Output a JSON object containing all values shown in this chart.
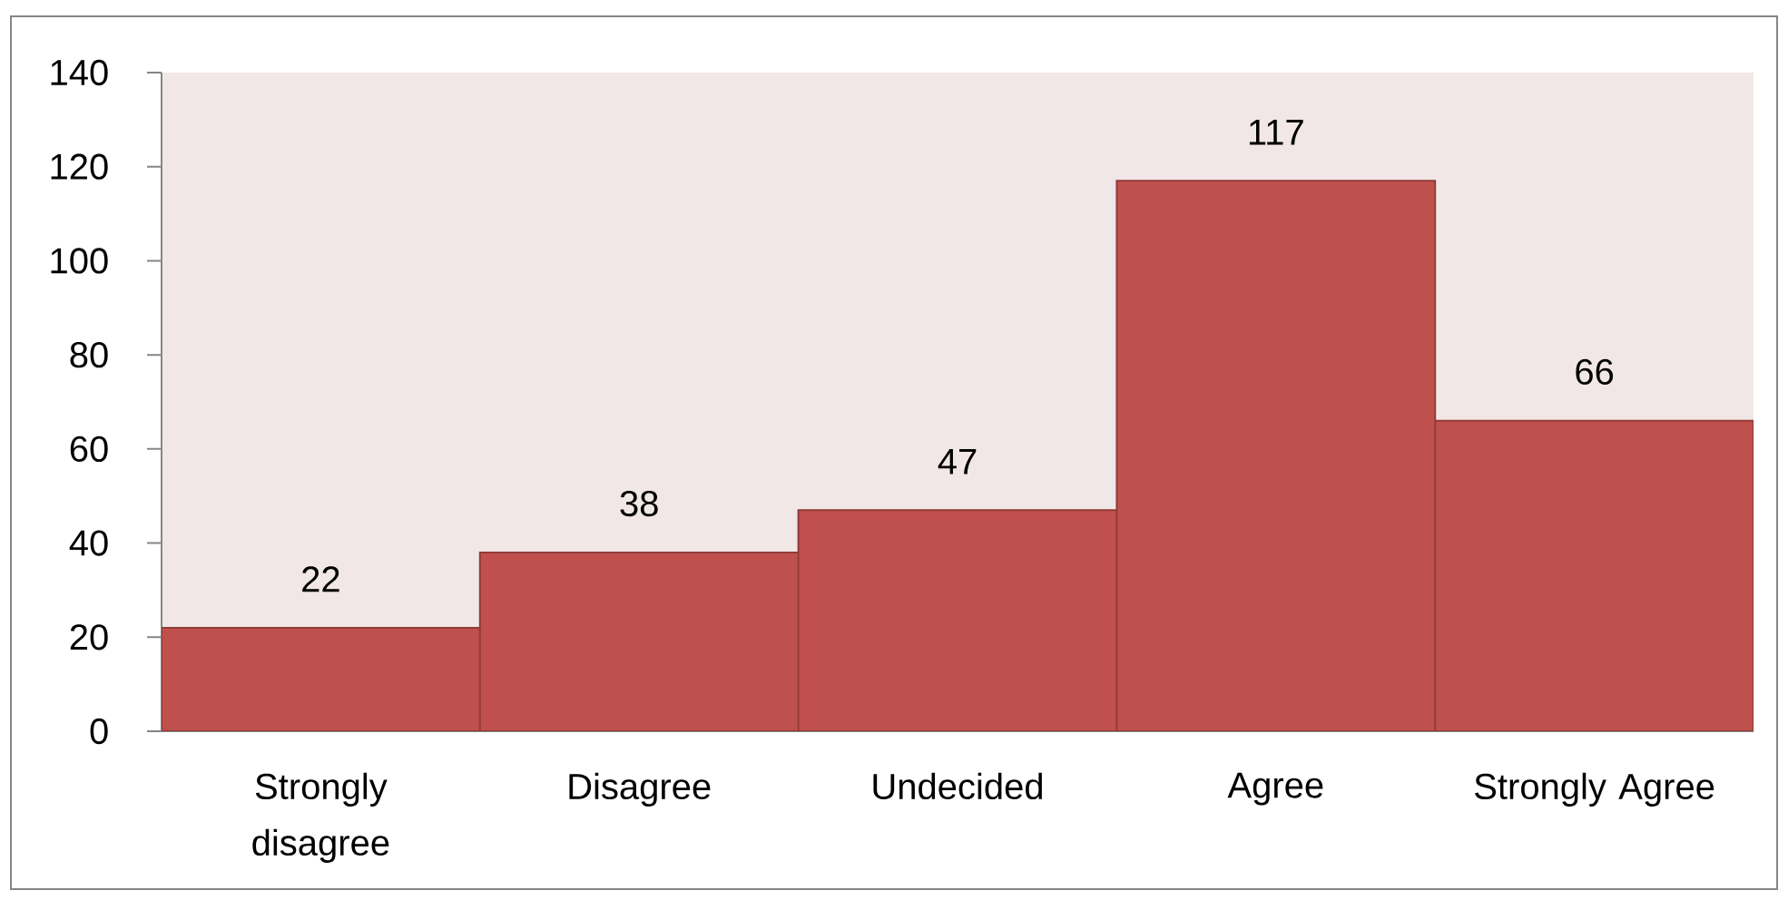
{
  "chart_data": {
    "type": "bar",
    "categories": [
      "Strongly disagree",
      "Disagree",
      "Undecided",
      "Agree",
      "Strongly Agree"
    ],
    "values": [
      22,
      38,
      47,
      117,
      66
    ],
    "color": "#c0504d",
    "ylim": [
      0,
      140
    ],
    "yticks": [
      0,
      20,
      40,
      60,
      80,
      100,
      120,
      140
    ],
    "data_labels": true
  }
}
